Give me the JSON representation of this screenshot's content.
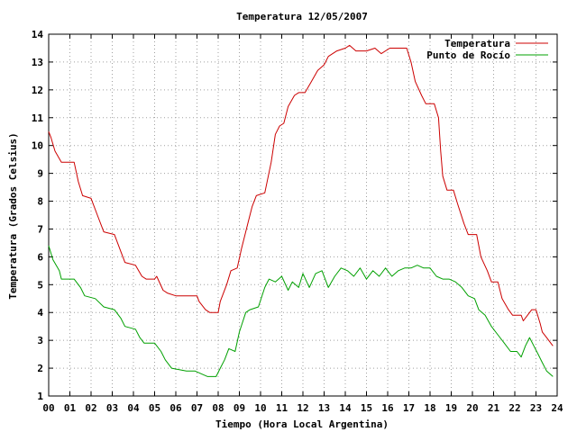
{
  "chart_data": {
    "type": "line",
    "title": "Temperatura 12/05/2007",
    "xlabel": "Tiempo (Hora Local Argentina)",
    "ylabel": "Temperatura (Grados Celsius)",
    "xlim": [
      0,
      24
    ],
    "ylim": [
      1,
      14
    ],
    "x_ticks": [
      "00",
      "01",
      "02",
      "03",
      "04",
      "05",
      "06",
      "07",
      "08",
      "09",
      "10",
      "11",
      "12",
      "13",
      "14",
      "15",
      "16",
      "17",
      "18",
      "19",
      "20",
      "21",
      "22",
      "23",
      "24"
    ],
    "y_ticks": [
      "1",
      "2",
      "3",
      "4",
      "5",
      "6",
      "7",
      "8",
      "9",
      "10",
      "11",
      "12",
      "13",
      "14"
    ],
    "grid": true,
    "legend_position": "top-right",
    "series": [
      {
        "name": "Temperatura",
        "color": "#cc0000",
        "points": [
          [
            0.0,
            10.5
          ],
          [
            0.1,
            10.3
          ],
          [
            0.3,
            9.8
          ],
          [
            0.6,
            9.4
          ],
          [
            1.2,
            9.4
          ],
          [
            1.4,
            8.7
          ],
          [
            1.6,
            8.2
          ],
          [
            2.0,
            8.1
          ],
          [
            2.3,
            7.5
          ],
          [
            2.6,
            6.9
          ],
          [
            3.1,
            6.8
          ],
          [
            3.4,
            6.2
          ],
          [
            3.6,
            5.8
          ],
          [
            4.1,
            5.7
          ],
          [
            4.4,
            5.3
          ],
          [
            4.6,
            5.2
          ],
          [
            5.0,
            5.2
          ],
          [
            5.1,
            5.3
          ],
          [
            5.4,
            4.8
          ],
          [
            5.6,
            4.7
          ],
          [
            6.0,
            4.6
          ],
          [
            7.0,
            4.6
          ],
          [
            7.1,
            4.4
          ],
          [
            7.4,
            4.1
          ],
          [
            7.6,
            4.0
          ],
          [
            8.0,
            4.0
          ],
          [
            8.1,
            4.4
          ],
          [
            8.4,
            5.0
          ],
          [
            8.6,
            5.5
          ],
          [
            8.9,
            5.6
          ],
          [
            9.1,
            6.3
          ],
          [
            9.4,
            7.2
          ],
          [
            9.6,
            7.8
          ],
          [
            9.8,
            8.2
          ],
          [
            10.2,
            8.3
          ],
          [
            10.5,
            9.4
          ],
          [
            10.7,
            10.4
          ],
          [
            10.9,
            10.7
          ],
          [
            11.1,
            10.8
          ],
          [
            11.3,
            11.4
          ],
          [
            11.6,
            11.8
          ],
          [
            11.8,
            11.9
          ],
          [
            12.1,
            11.9
          ],
          [
            12.4,
            12.3
          ],
          [
            12.7,
            12.7
          ],
          [
            13.0,
            12.9
          ],
          [
            13.2,
            13.2
          ],
          [
            13.6,
            13.4
          ],
          [
            14.0,
            13.5
          ],
          [
            14.2,
            13.6
          ],
          [
            14.5,
            13.4
          ],
          [
            15.0,
            13.4
          ],
          [
            15.4,
            13.5
          ],
          [
            15.7,
            13.3
          ],
          [
            16.1,
            13.5
          ],
          [
            16.6,
            13.5
          ],
          [
            16.9,
            13.5
          ],
          [
            17.1,
            13.0
          ],
          [
            17.3,
            12.3
          ],
          [
            17.6,
            11.8
          ],
          [
            17.8,
            11.5
          ],
          [
            18.2,
            11.5
          ],
          [
            18.4,
            11.0
          ],
          [
            18.5,
            9.8
          ],
          [
            18.6,
            8.9
          ],
          [
            18.8,
            8.4
          ],
          [
            19.1,
            8.4
          ],
          [
            19.3,
            7.9
          ],
          [
            19.6,
            7.2
          ],
          [
            19.8,
            6.8
          ],
          [
            20.2,
            6.8
          ],
          [
            20.4,
            6.0
          ],
          [
            20.7,
            5.5
          ],
          [
            20.9,
            5.1
          ],
          [
            21.2,
            5.1
          ],
          [
            21.4,
            4.5
          ],
          [
            21.7,
            4.1
          ],
          [
            21.9,
            3.9
          ],
          [
            22.3,
            3.9
          ],
          [
            22.4,
            3.7
          ],
          [
            22.6,
            3.9
          ],
          [
            22.8,
            4.1
          ],
          [
            23.0,
            4.1
          ],
          [
            23.2,
            3.6
          ],
          [
            23.3,
            3.3
          ],
          [
            23.5,
            3.1
          ],
          [
            23.7,
            2.9
          ],
          [
            23.8,
            2.8
          ]
        ]
      },
      {
        "name": "Punto de Rocío",
        "color": "#00a000",
        "points": [
          [
            0.0,
            6.4
          ],
          [
            0.2,
            5.9
          ],
          [
            0.5,
            5.5
          ],
          [
            0.6,
            5.2
          ],
          [
            1.2,
            5.2
          ],
          [
            1.5,
            4.9
          ],
          [
            1.7,
            4.6
          ],
          [
            2.2,
            4.5
          ],
          [
            2.6,
            4.2
          ],
          [
            3.1,
            4.1
          ],
          [
            3.4,
            3.8
          ],
          [
            3.6,
            3.5
          ],
          [
            4.1,
            3.4
          ],
          [
            4.3,
            3.1
          ],
          [
            4.5,
            2.9
          ],
          [
            5.0,
            2.9
          ],
          [
            5.3,
            2.6
          ],
          [
            5.5,
            2.3
          ],
          [
            5.8,
            2.0
          ],
          [
            6.5,
            1.9
          ],
          [
            6.9,
            1.9
          ],
          [
            7.2,
            1.8
          ],
          [
            7.5,
            1.7
          ],
          [
            7.9,
            1.7
          ],
          [
            8.1,
            2.0
          ],
          [
            8.3,
            2.3
          ],
          [
            8.5,
            2.7
          ],
          [
            8.8,
            2.6
          ],
          [
            9.0,
            3.3
          ],
          [
            9.3,
            4.0
          ],
          [
            9.5,
            4.1
          ],
          [
            9.9,
            4.2
          ],
          [
            10.2,
            4.9
          ],
          [
            10.4,
            5.2
          ],
          [
            10.7,
            5.1
          ],
          [
            11.0,
            5.3
          ],
          [
            11.3,
            4.8
          ],
          [
            11.5,
            5.1
          ],
          [
            11.8,
            4.9
          ],
          [
            12.0,
            5.4
          ],
          [
            12.3,
            4.9
          ],
          [
            12.6,
            5.4
          ],
          [
            12.9,
            5.5
          ],
          [
            13.2,
            4.9
          ],
          [
            13.5,
            5.3
          ],
          [
            13.8,
            5.6
          ],
          [
            14.1,
            5.5
          ],
          [
            14.4,
            5.3
          ],
          [
            14.7,
            5.6
          ],
          [
            15.0,
            5.2
          ],
          [
            15.3,
            5.5
          ],
          [
            15.6,
            5.3
          ],
          [
            15.9,
            5.6
          ],
          [
            16.2,
            5.3
          ],
          [
            16.5,
            5.5
          ],
          [
            16.8,
            5.6
          ],
          [
            17.1,
            5.6
          ],
          [
            17.4,
            5.7
          ],
          [
            17.7,
            5.6
          ],
          [
            18.0,
            5.6
          ],
          [
            18.3,
            5.3
          ],
          [
            18.6,
            5.2
          ],
          [
            18.9,
            5.2
          ],
          [
            19.2,
            5.1
          ],
          [
            19.5,
            4.9
          ],
          [
            19.8,
            4.6
          ],
          [
            20.1,
            4.5
          ],
          [
            20.3,
            4.1
          ],
          [
            20.6,
            3.9
          ],
          [
            20.9,
            3.5
          ],
          [
            21.2,
            3.2
          ],
          [
            21.5,
            2.9
          ],
          [
            21.8,
            2.6
          ],
          [
            22.1,
            2.6
          ],
          [
            22.3,
            2.4
          ],
          [
            22.5,
            2.8
          ],
          [
            22.7,
            3.1
          ],
          [
            22.9,
            2.8
          ],
          [
            23.1,
            2.5
          ],
          [
            23.3,
            2.2
          ],
          [
            23.5,
            1.9
          ],
          [
            23.8,
            1.7
          ]
        ]
      }
    ]
  }
}
